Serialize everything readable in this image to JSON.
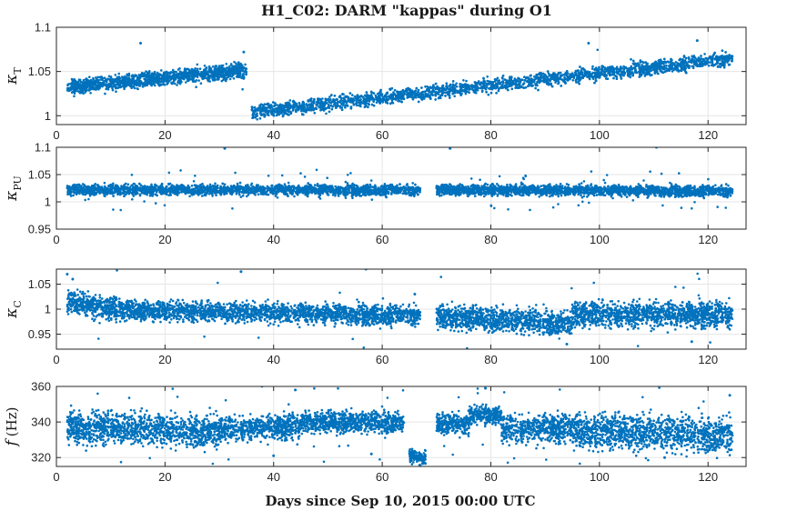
{
  "figure": {
    "title": "H1_C02: DARM \"kappas\" during O1",
    "xlabel": "Days since Sep 10, 2015 00:00 UTC"
  },
  "colors": {
    "series": "#0072BD",
    "grid": "#e6e6e6",
    "axis": "#262626"
  },
  "chart_data": [
    {
      "type": "scatter",
      "ylabel_symbol": "κ",
      "ylabel_subscript": "T",
      "xlim": [
        0,
        127
      ],
      "ylim": [
        0.99,
        1.1
      ],
      "xticks": [
        0,
        20,
        40,
        60,
        80,
        100,
        120
      ],
      "yticks": [
        1,
        1.05,
        1.1
      ],
      "ytick_labels": [
        "1",
        "1.05",
        "1.1"
      ],
      "grid": true,
      "segments": [
        {
          "x": [
            2,
            35
          ],
          "y": [
            1.032,
            1.052
          ],
          "spread": 0.004,
          "outliers": 3
        },
        {
          "x": [
            36,
            124.5
          ],
          "y": [
            1.004,
            1.065
          ],
          "spread": 0.004,
          "outliers": 2
        }
      ],
      "outliers": [
        [
          15.5,
          1.082
        ],
        [
          34.5,
          1.072
        ],
        [
          98,
          1.082
        ],
        [
          118,
          1.085
        ]
      ]
    },
    {
      "type": "scatter",
      "ylabel_symbol": "κ",
      "ylabel_subscript": "PU",
      "xlim": [
        0,
        127
      ],
      "ylim": [
        0.95,
        1.1
      ],
      "xticks": [
        0,
        20,
        40,
        60,
        80,
        100,
        120
      ],
      "yticks": [
        0.95,
        1,
        1.05,
        1.1
      ],
      "ytick_labels": [
        "0.95",
        "1",
        "1.05",
        "1.1"
      ],
      "grid": true,
      "segments": [
        {
          "x": [
            2,
            67
          ],
          "y": [
            1.022,
            1.022
          ],
          "spread": 0.005,
          "outliers": 30
        },
        {
          "x": [
            70,
            124.5
          ],
          "y": [
            1.022,
            1.02
          ],
          "spread": 0.005,
          "outliers": 35
        }
      ],
      "outliers": [
        [
          31,
          1.098
        ],
        [
          72.5,
          1.098
        ],
        [
          110.5,
          1.1
        ]
      ]
    },
    {
      "type": "scatter",
      "ylabel_symbol": "κ",
      "ylabel_subscript": "C",
      "xlim": [
        0,
        127
      ],
      "ylim": [
        0.92,
        1.08
      ],
      "xticks": [
        0,
        20,
        40,
        60,
        80,
        100,
        120
      ],
      "yticks": [
        0.95,
        1,
        1.05
      ],
      "ytick_labels": [
        "0.95",
        "1",
        "1.05"
      ],
      "grid": true,
      "segments": [
        {
          "x": [
            2,
            12
          ],
          "y": [
            1.015,
            1.0
          ],
          "spread": 0.012,
          "outliers": 4
        },
        {
          "x": [
            12,
            67
          ],
          "y": [
            0.998,
            0.988
          ],
          "spread": 0.01,
          "outliers": 10
        },
        {
          "x": [
            70,
            95
          ],
          "y": [
            0.985,
            0.972
          ],
          "spread": 0.012,
          "outliers": 8
        },
        {
          "x": [
            95,
            124.5
          ],
          "y": [
            0.99,
            0.99
          ],
          "spread": 0.013,
          "outliers": 10
        }
      ],
      "outliers": [
        [
          2,
          1.07
        ],
        [
          3,
          1.06
        ],
        [
          34,
          1.075
        ],
        [
          57,
          1.08
        ],
        [
          66,
          1.03
        ],
        [
          94,
          0.93
        ],
        [
          117,
          0.935
        ]
      ]
    },
    {
      "type": "scatter",
      "ylabel_symbol": "f",
      "ylabel_subscript": "",
      "ylabel_unit": "(Hz)",
      "xlim": [
        0,
        127
      ],
      "ylim": [
        315,
        360
      ],
      "xticks": [
        0,
        20,
        40,
        60,
        80,
        100,
        120
      ],
      "yticks": [
        320,
        340,
        360
      ],
      "ytick_labels": [
        "320",
        "340",
        "360"
      ],
      "grid": true,
      "segments": [
        {
          "x": [
            2,
            30
          ],
          "y": [
            337,
            335
          ],
          "spread": 4.5,
          "outliers": 20
        },
        {
          "x": [
            30,
            45
          ],
          "y": [
            336,
            338
          ],
          "spread": 3.5,
          "outliers": 8
        },
        {
          "x": [
            45,
            64
          ],
          "y": [
            340,
            340
          ],
          "spread": 3.0,
          "outliers": 10
        },
        {
          "x": [
            65,
            68
          ],
          "y": [
            321,
            320
          ],
          "spread": 2.0,
          "outliers": 0
        },
        {
          "x": [
            70,
            76
          ],
          "y": [
            339,
            339
          ],
          "spread": 3.0,
          "outliers": 3
        },
        {
          "x": [
            76,
            82
          ],
          "y": [
            344,
            344
          ],
          "spread": 2.5,
          "outliers": 3
        },
        {
          "x": [
            82,
            95
          ],
          "y": [
            336,
            337
          ],
          "spread": 4.0,
          "outliers": 8
        },
        {
          "x": [
            95,
            124.5
          ],
          "y": [
            335,
            333
          ],
          "spread": 5.0,
          "outliers": 20
        }
      ],
      "outliers": [
        [
          79,
          359
        ],
        [
          44,
          358
        ],
        [
          124,
          355
        ],
        [
          112,
          320
        ],
        [
          40,
          321
        ],
        [
          58,
          322
        ]
      ]
    }
  ]
}
